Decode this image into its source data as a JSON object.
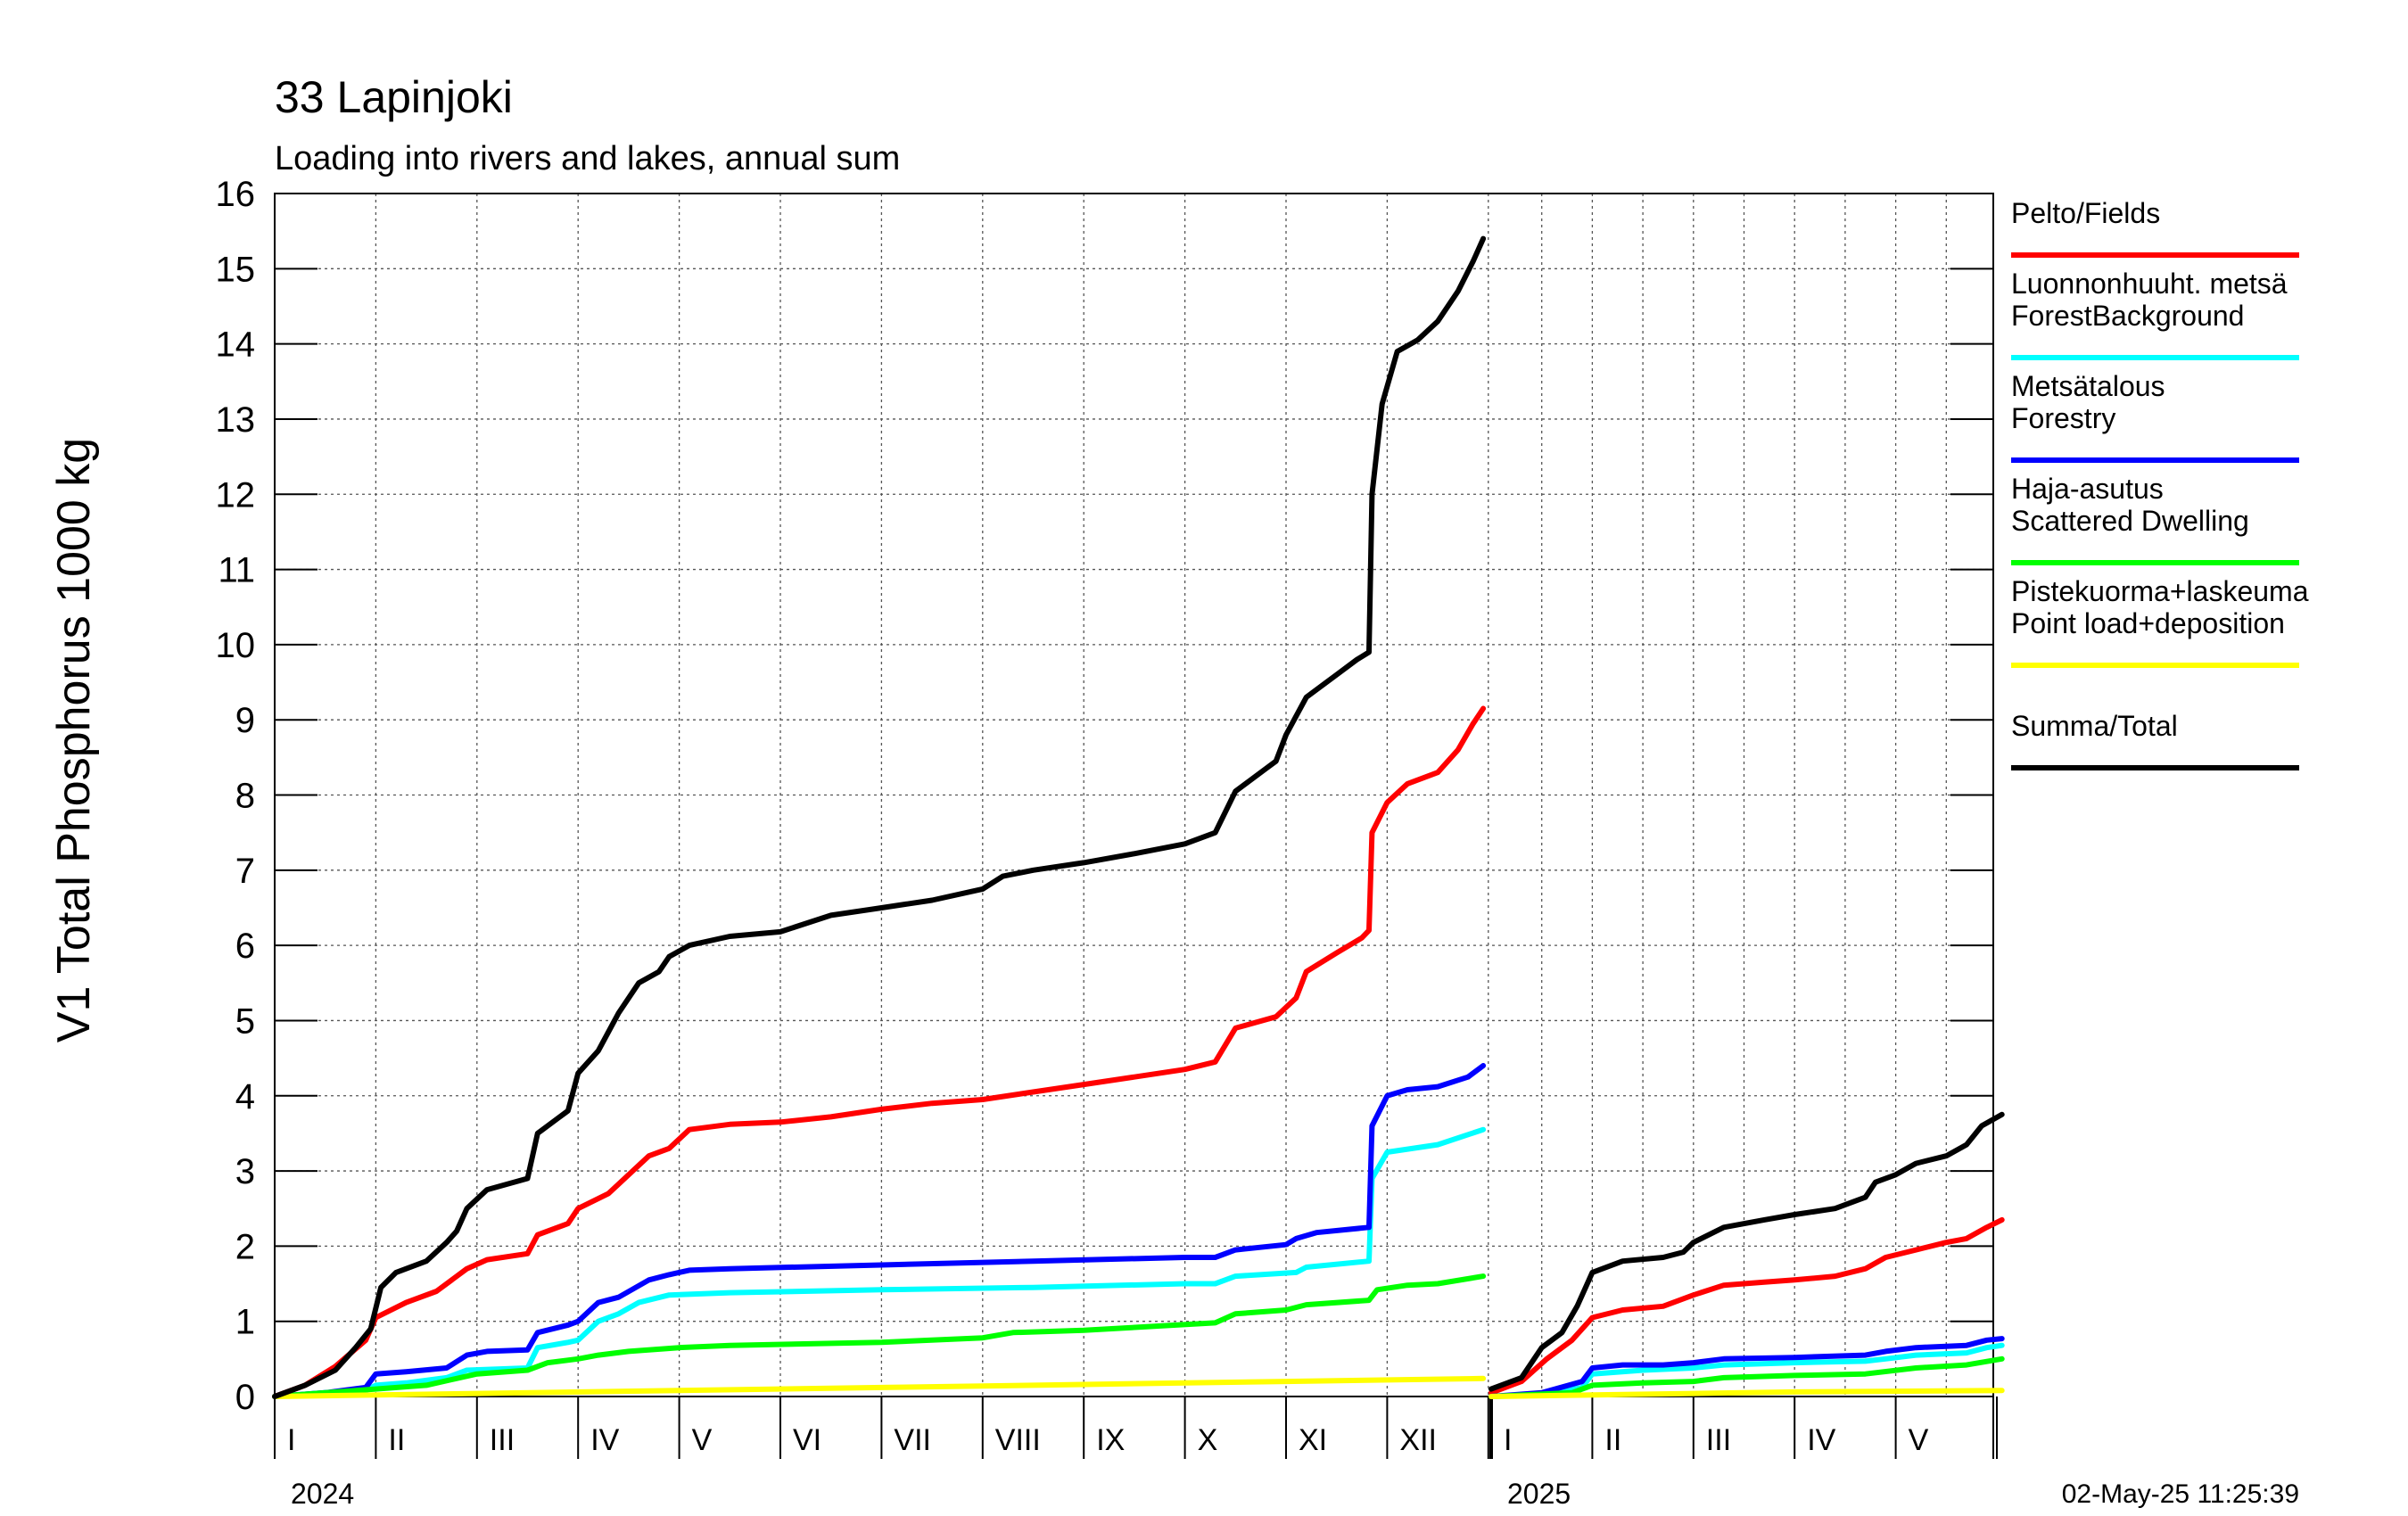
{
  "chart_data": {
    "type": "line",
    "title": "33 Lapinjoki",
    "subtitle": "Loading into rivers and lakes, annual sum",
    "ylabel": "V1 Total Phosphorus 1000 kg",
    "ylim": [
      0,
      16
    ],
    "yticks": [
      0,
      1,
      2,
      3,
      4,
      5,
      6,
      7,
      8,
      9,
      10,
      11,
      12,
      13,
      14,
      15,
      16
    ],
    "grid": true,
    "legend_position": "right",
    "month_labels_2024": [
      "I",
      "II",
      "III",
      "IV",
      "V",
      "VI",
      "VII",
      "VIII",
      "IX",
      "X",
      "XI",
      "XII"
    ],
    "month_labels_2025": [
      "I",
      "II",
      "III",
      "IV",
      "V"
    ],
    "year_labels": [
      "2024",
      "2025"
    ],
    "timestamp": "02-May-25 11:25:39",
    "series": [
      {
        "label_lines": [
          "Pelto/Fields"
        ],
        "color": "#ff0000",
        "seg2024": [
          [
            0,
            0
          ],
          [
            0.3,
            0.15
          ],
          [
            0.6,
            0.4
          ],
          [
            0.9,
            0.75
          ],
          [
            1.0,
            1.05
          ],
          [
            1.3,
            1.25
          ],
          [
            1.6,
            1.4
          ],
          [
            1.9,
            1.7
          ],
          [
            2.1,
            1.82
          ],
          [
            2.5,
            1.9
          ],
          [
            2.6,
            2.15
          ],
          [
            2.9,
            2.3
          ],
          [
            3.0,
            2.5
          ],
          [
            3.3,
            2.7
          ],
          [
            3.5,
            2.95
          ],
          [
            3.7,
            3.2
          ],
          [
            3.9,
            3.3
          ],
          [
            4.1,
            3.55
          ],
          [
            4.5,
            3.62
          ],
          [
            5,
            3.65
          ],
          [
            5.5,
            3.72
          ],
          [
            6,
            3.82
          ],
          [
            6.5,
            3.9
          ],
          [
            7,
            3.95
          ],
          [
            7.5,
            4.05
          ],
          [
            8,
            4.15
          ],
          [
            8.5,
            4.25
          ],
          [
            9,
            4.35
          ],
          [
            9.3,
            4.45
          ],
          [
            9.5,
            4.9
          ],
          [
            9.9,
            5.05
          ],
          [
            10.1,
            5.3
          ],
          [
            10.2,
            5.65
          ],
          [
            10.5,
            5.9
          ],
          [
            10.75,
            6.1
          ],
          [
            10.82,
            6.2
          ],
          [
            10.85,
            7.5
          ],
          [
            11.0,
            7.9
          ],
          [
            11.2,
            8.15
          ],
          [
            11.5,
            8.3
          ],
          [
            11.7,
            8.6
          ],
          [
            11.85,
            8.95
          ],
          [
            11.95,
            9.15
          ]
        ],
        "seg2025": [
          [
            0,
            0.05
          ],
          [
            0.3,
            0.2
          ],
          [
            0.55,
            0.5
          ],
          [
            0.8,
            0.75
          ],
          [
            1.0,
            1.05
          ],
          [
            1.3,
            1.15
          ],
          [
            1.7,
            1.2
          ],
          [
            2.0,
            1.35
          ],
          [
            2.3,
            1.48
          ],
          [
            2.7,
            1.52
          ],
          [
            3.0,
            1.55
          ],
          [
            3.4,
            1.6
          ],
          [
            3.7,
            1.7
          ],
          [
            3.9,
            1.85
          ],
          [
            4.2,
            1.95
          ],
          [
            4.5,
            2.05
          ],
          [
            4.7,
            2.1
          ],
          [
            4.9,
            2.25
          ],
          [
            5.05,
            2.35
          ]
        ]
      },
      {
        "label_lines": [
          "Luonnonhuuht. metsä",
          "ForestBackground"
        ],
        "color": "#00ffff",
        "seg2024": [
          [
            0,
            0
          ],
          [
            0.5,
            0.05
          ],
          [
            0.9,
            0.08
          ],
          [
            1.0,
            0.15
          ],
          [
            1.3,
            0.18
          ],
          [
            1.7,
            0.25
          ],
          [
            1.9,
            0.35
          ],
          [
            2.5,
            0.38
          ],
          [
            2.6,
            0.65
          ],
          [
            2.9,
            0.72
          ],
          [
            3.0,
            0.75
          ],
          [
            3.2,
            1.0
          ],
          [
            3.4,
            1.1
          ],
          [
            3.6,
            1.25
          ],
          [
            3.9,
            1.35
          ],
          [
            4.5,
            1.38
          ],
          [
            6,
            1.42
          ],
          [
            7.5,
            1.45
          ],
          [
            9,
            1.5
          ],
          [
            9.3,
            1.5
          ],
          [
            9.5,
            1.6
          ],
          [
            10.1,
            1.65
          ],
          [
            10.2,
            1.72
          ],
          [
            10.82,
            1.8
          ],
          [
            10.85,
            2.9
          ],
          [
            11.0,
            3.25
          ],
          [
            11.5,
            3.35
          ],
          [
            11.95,
            3.55
          ]
        ],
        "seg2025": [
          [
            0,
            0
          ],
          [
            0.5,
            0.02
          ],
          [
            0.9,
            0.12
          ],
          [
            1.0,
            0.3
          ],
          [
            1.5,
            0.35
          ],
          [
            2.0,
            0.38
          ],
          [
            2.3,
            0.42
          ],
          [
            3.0,
            0.45
          ],
          [
            3.7,
            0.47
          ],
          [
            3.9,
            0.5
          ],
          [
            4.2,
            0.55
          ],
          [
            4.7,
            0.58
          ],
          [
            4.9,
            0.65
          ],
          [
            5.05,
            0.68
          ]
        ]
      },
      {
        "label_lines": [
          "Metsätalous",
          "Forestry"
        ],
        "color": "#0000ff",
        "seg2024": [
          [
            0,
            0
          ],
          [
            0.5,
            0.05
          ],
          [
            0.9,
            0.12
          ],
          [
            1.0,
            0.3
          ],
          [
            1.3,
            0.33
          ],
          [
            1.7,
            0.38
          ],
          [
            1.9,
            0.55
          ],
          [
            2.1,
            0.6
          ],
          [
            2.5,
            0.62
          ],
          [
            2.6,
            0.85
          ],
          [
            2.9,
            0.95
          ],
          [
            3.0,
            1.0
          ],
          [
            3.2,
            1.25
          ],
          [
            3.4,
            1.32
          ],
          [
            3.7,
            1.55
          ],
          [
            3.9,
            1.62
          ],
          [
            4.1,
            1.68
          ],
          [
            4.5,
            1.7
          ],
          [
            6,
            1.75
          ],
          [
            7.5,
            1.8
          ],
          [
            9,
            1.85
          ],
          [
            9.3,
            1.85
          ],
          [
            9.5,
            1.95
          ],
          [
            10.0,
            2.02
          ],
          [
            10.1,
            2.1
          ],
          [
            10.3,
            2.18
          ],
          [
            10.82,
            2.25
          ],
          [
            10.85,
            3.6
          ],
          [
            11.0,
            4.0
          ],
          [
            11.2,
            4.08
          ],
          [
            11.5,
            4.12
          ],
          [
            11.8,
            4.25
          ],
          [
            11.95,
            4.4
          ]
        ],
        "seg2025": [
          [
            0,
            0
          ],
          [
            0.5,
            0.05
          ],
          [
            0.9,
            0.2
          ],
          [
            1.0,
            0.38
          ],
          [
            1.3,
            0.42
          ],
          [
            1.7,
            0.42
          ],
          [
            2.0,
            0.45
          ],
          [
            2.3,
            0.5
          ],
          [
            3.0,
            0.52
          ],
          [
            3.7,
            0.55
          ],
          [
            3.9,
            0.6
          ],
          [
            4.2,
            0.65
          ],
          [
            4.7,
            0.68
          ],
          [
            4.9,
            0.75
          ],
          [
            5.05,
            0.77
          ]
        ]
      },
      {
        "label_lines": [
          "Haja-asutus",
          "Scattered Dwelling"
        ],
        "color": "#00ff00",
        "seg2024": [
          [
            0,
            0
          ],
          [
            1.0,
            0.1
          ],
          [
            1.5,
            0.15
          ],
          [
            2.0,
            0.3
          ],
          [
            2.5,
            0.35
          ],
          [
            2.7,
            0.45
          ],
          [
            3.0,
            0.5
          ],
          [
            3.2,
            0.55
          ],
          [
            3.5,
            0.6
          ],
          [
            4.0,
            0.65
          ],
          [
            4.5,
            0.68
          ],
          [
            6,
            0.72
          ],
          [
            7.0,
            0.78
          ],
          [
            7.3,
            0.85
          ],
          [
            8.0,
            0.88
          ],
          [
            9.3,
            0.98
          ],
          [
            9.5,
            1.1
          ],
          [
            10.0,
            1.15
          ],
          [
            10.2,
            1.22
          ],
          [
            10.82,
            1.28
          ],
          [
            10.9,
            1.42
          ],
          [
            11.2,
            1.48
          ],
          [
            11.5,
            1.5
          ],
          [
            11.95,
            1.6
          ]
        ],
        "seg2025": [
          [
            0,
            0
          ],
          [
            0.8,
            0.05
          ],
          [
            1.0,
            0.15
          ],
          [
            1.5,
            0.18
          ],
          [
            2.0,
            0.2
          ],
          [
            2.3,
            0.25
          ],
          [
            3.0,
            0.28
          ],
          [
            3.7,
            0.3
          ],
          [
            4.2,
            0.38
          ],
          [
            4.7,
            0.42
          ],
          [
            5.05,
            0.5
          ]
        ]
      },
      {
        "label_lines": [
          "Pistekuorma+laskeuma",
          "Point load+deposition"
        ],
        "color": "#ffff00",
        "seg2024": [
          [
            0,
            0
          ],
          [
            2,
            0.04
          ],
          [
            4,
            0.08
          ],
          [
            6,
            0.12
          ],
          [
            8,
            0.16
          ],
          [
            10,
            0.2
          ],
          [
            11.95,
            0.24
          ]
        ],
        "seg2025": [
          [
            0,
            0
          ],
          [
            1,
            0.02
          ],
          [
            2,
            0.04
          ],
          [
            3,
            0.06
          ],
          [
            4,
            0.07
          ],
          [
            5.05,
            0.08
          ]
        ]
      },
      {
        "label_lines": [
          "Summa/Total"
        ],
        "color": "#000000",
        "seg2024": [
          [
            0,
            0
          ],
          [
            0.3,
            0.15
          ],
          [
            0.6,
            0.35
          ],
          [
            0.8,
            0.65
          ],
          [
            0.95,
            0.9
          ],
          [
            1.05,
            1.45
          ],
          [
            1.2,
            1.65
          ],
          [
            1.5,
            1.8
          ],
          [
            1.7,
            2.05
          ],
          [
            1.8,
            2.2
          ],
          [
            1.9,
            2.5
          ],
          [
            2.1,
            2.75
          ],
          [
            2.5,
            2.9
          ],
          [
            2.6,
            3.5
          ],
          [
            2.8,
            3.7
          ],
          [
            2.9,
            3.8
          ],
          [
            3.0,
            4.3
          ],
          [
            3.2,
            4.6
          ],
          [
            3.4,
            5.1
          ],
          [
            3.6,
            5.5
          ],
          [
            3.8,
            5.65
          ],
          [
            3.9,
            5.85
          ],
          [
            4.1,
            6.0
          ],
          [
            4.5,
            6.12
          ],
          [
            5,
            6.18
          ],
          [
            5.5,
            6.4
          ],
          [
            6,
            6.5
          ],
          [
            6.5,
            6.6
          ],
          [
            7,
            6.75
          ],
          [
            7.2,
            6.92
          ],
          [
            7.5,
            7.0
          ],
          [
            8,
            7.1
          ],
          [
            8.5,
            7.22
          ],
          [
            9,
            7.35
          ],
          [
            9.3,
            7.5
          ],
          [
            9.5,
            8.05
          ],
          [
            9.8,
            8.35
          ],
          [
            9.9,
            8.45
          ],
          [
            10.0,
            8.8
          ],
          [
            10.2,
            9.3
          ],
          [
            10.5,
            9.6
          ],
          [
            10.7,
            9.8
          ],
          [
            10.82,
            9.9
          ],
          [
            10.85,
            12.0
          ],
          [
            10.95,
            13.2
          ],
          [
            11.1,
            13.9
          ],
          [
            11.3,
            14.05
          ],
          [
            11.5,
            14.3
          ],
          [
            11.7,
            14.7
          ],
          [
            11.85,
            15.1
          ],
          [
            11.95,
            15.4
          ]
        ],
        "seg2025": [
          [
            0,
            0.1
          ],
          [
            0.3,
            0.25
          ],
          [
            0.5,
            0.65
          ],
          [
            0.7,
            0.85
          ],
          [
            0.85,
            1.2
          ],
          [
            1.0,
            1.65
          ],
          [
            1.3,
            1.8
          ],
          [
            1.7,
            1.85
          ],
          [
            1.9,
            1.92
          ],
          [
            2.0,
            2.05
          ],
          [
            2.3,
            2.25
          ],
          [
            2.7,
            2.35
          ],
          [
            3.0,
            2.42
          ],
          [
            3.4,
            2.5
          ],
          [
            3.7,
            2.65
          ],
          [
            3.8,
            2.85
          ],
          [
            4.0,
            2.95
          ],
          [
            4.2,
            3.1
          ],
          [
            4.5,
            3.2
          ],
          [
            4.7,
            3.35
          ],
          [
            4.85,
            3.6
          ],
          [
            5.05,
            3.75
          ]
        ]
      }
    ]
  }
}
